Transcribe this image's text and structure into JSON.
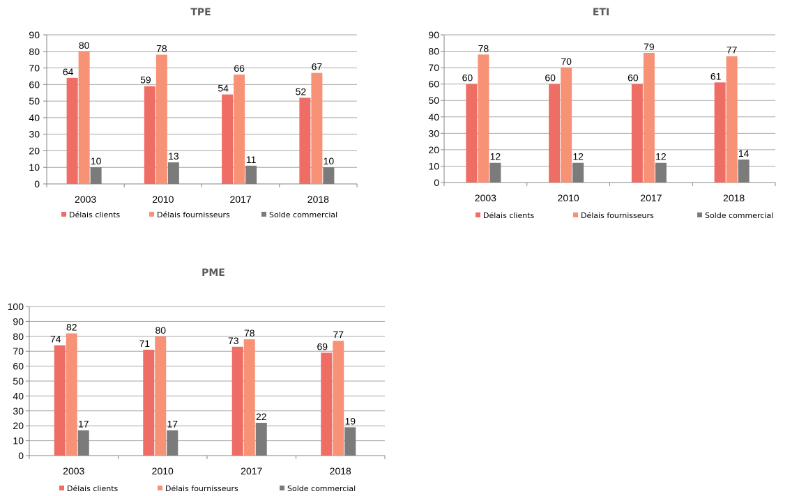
{
  "colors": {
    "delais_clients": "#ee6e65",
    "delais_fournisseurs": "#f79277",
    "solde_commercial": "#7b7b7b"
  },
  "chart_data": [
    {
      "type": "bar",
      "title": "TPE",
      "categories": [
        "2003",
        "2010",
        "2017",
        "2018"
      ],
      "ylim": [
        0,
        90
      ],
      "yticks": [
        0,
        10,
        20,
        30,
        40,
        50,
        60,
        70,
        80,
        90
      ],
      "grid": true,
      "legend_position": "bottom",
      "series": [
        {
          "name": "Délais clients",
          "values": [
            64,
            59,
            54,
            52
          ],
          "labels": [
            "64",
            "59",
            "54",
            "52"
          ]
        },
        {
          "name": "Délais fournisseurs",
          "values": [
            80,
            78,
            66,
            67
          ],
          "labels": [
            "80",
            "78",
            "66",
            "67"
          ]
        },
        {
          "name": "Solde commercial",
          "values": [
            10,
            13,
            11,
            10
          ],
          "labels": [
            "10",
            "13",
            "11",
            "10"
          ]
        }
      ]
    },
    {
      "type": "bar",
      "title": "ETI",
      "categories": [
        "2003",
        "2010",
        "2017",
        "2018"
      ],
      "ylim": [
        0,
        90
      ],
      "yticks": [
        0,
        10,
        20,
        30,
        40,
        50,
        60,
        70,
        80,
        90
      ],
      "grid": true,
      "legend_position": "bottom",
      "series": [
        {
          "name": "Délais clients",
          "values": [
            60,
            60,
            60,
            61
          ],
          "labels": [
            "60",
            "60",
            "60",
            "61"
          ]
        },
        {
          "name": "Délais fournisseurs",
          "values": [
            78,
            70,
            79,
            77
          ],
          "labels": [
            "78",
            "70",
            "79",
            "77"
          ]
        },
        {
          "name": "Solde commercial",
          "values": [
            12,
            12,
            12,
            14
          ],
          "labels": [
            "12",
            "12",
            "12",
            "14"
          ]
        }
      ]
    },
    {
      "type": "bar",
      "title": "PME",
      "categories": [
        "2003",
        "2010",
        "2017",
        "2018"
      ],
      "ylim": [
        0,
        100
      ],
      "yticks": [
        0,
        10,
        20,
        30,
        40,
        50,
        60,
        70,
        80,
        90,
        100
      ],
      "grid": true,
      "legend_position": "bottom",
      "series": [
        {
          "name": "Délais clients",
          "values": [
            74,
            71,
            73,
            69
          ],
          "labels": [
            "74",
            "71",
            "73",
            "69"
          ]
        },
        {
          "name": "Délais fournisseurs",
          "values": [
            82,
            80,
            78,
            77
          ],
          "labels": [
            "82",
            "80",
            "78",
            "77"
          ]
        },
        {
          "name": "Solde commercial",
          "values": [
            17,
            17,
            22,
            19
          ],
          "labels": [
            "17",
            "17",
            "22",
            "19"
          ]
        }
      ]
    }
  ]
}
